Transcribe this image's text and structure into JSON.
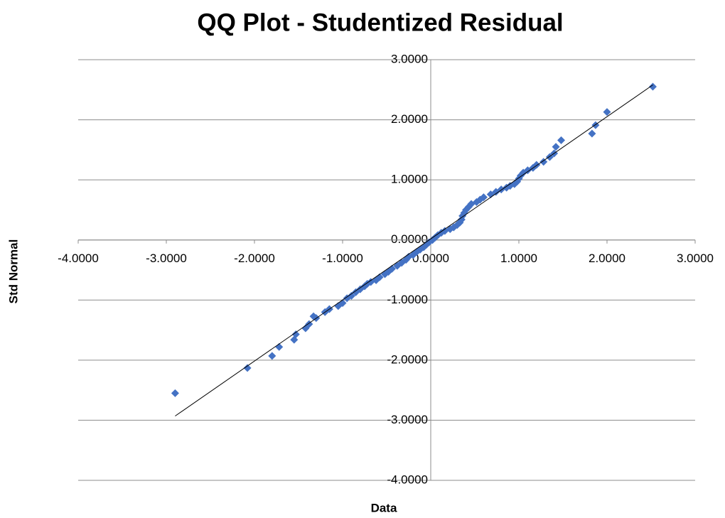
{
  "chart_data": {
    "type": "scatter",
    "title": "QQ Plot - Studentized Residual",
    "x_label": "Data",
    "y_label": "Std Normal",
    "xlim": [
      -4,
      3
    ],
    "ylim": [
      -4,
      3
    ],
    "xticks": [
      {
        "value": -4,
        "label": "-4.0000"
      },
      {
        "value": -3,
        "label": "-3.0000"
      },
      {
        "value": -2,
        "label": "-2.0000"
      },
      {
        "value": -1,
        "label": "-1.0000"
      },
      {
        "value": 0,
        "label": "0.0000"
      },
      {
        "value": 1,
        "label": "1.0000"
      },
      {
        "value": 2,
        "label": "2.0000"
      },
      {
        "value": 3,
        "label": "3.0000"
      }
    ],
    "yticks": [
      {
        "value": -4,
        "label": "-4.0000"
      },
      {
        "value": -3,
        "label": "-3.0000"
      },
      {
        "value": -2,
        "label": "-2.0000"
      },
      {
        "value": -1,
        "label": "-1.0000"
      },
      {
        "value": 0,
        "label": "0.0000"
      },
      {
        "value": 1,
        "label": "1.0000"
      },
      {
        "value": 2,
        "label": "2.0000"
      },
      {
        "value": 3,
        "label": "3.0000"
      }
    ],
    "grid": true,
    "color": "#4472c4",
    "x": [
      -2.9,
      -2.08,
      -1.8,
      -1.72,
      -1.55,
      -1.53,
      -1.42,
      -1.38,
      -1.33,
      -1.3,
      -1.2,
      -1.15,
      -1.05,
      -1.0,
      -0.95,
      -0.9,
      -0.85,
      -0.8,
      -0.75,
      -0.72,
      -0.68,
      -0.62,
      -0.58,
      -0.52,
      -0.48,
      -0.44,
      -0.38,
      -0.33,
      -0.28,
      -0.25,
      -0.2,
      -0.16,
      -0.12,
      -0.08,
      -0.05,
      -0.02,
      0.02,
      0.05,
      0.08,
      0.12,
      0.16,
      0.22,
      0.26,
      0.3,
      0.33,
      0.35,
      0.36,
      0.38,
      0.4,
      0.43,
      0.46,
      0.52,
      0.56,
      0.6,
      0.68,
      0.74,
      0.8,
      0.86,
      0.9,
      0.95,
      0.98,
      1.0,
      1.02,
      1.05,
      1.1,
      1.16,
      1.2,
      1.28,
      1.35,
      1.4,
      1.42,
      1.48,
      1.83,
      1.87,
      2.0,
      2.52
    ],
    "values": [
      -2.55,
      -2.13,
      -1.93,
      -1.78,
      -1.66,
      -1.57,
      -1.47,
      -1.4,
      -1.27,
      -1.3,
      -1.2,
      -1.15,
      -1.1,
      -1.05,
      -0.97,
      -0.93,
      -0.87,
      -0.82,
      -0.77,
      -0.73,
      -0.7,
      -0.67,
      -0.62,
      -0.57,
      -0.53,
      -0.48,
      -0.43,
      -0.38,
      -0.33,
      -0.28,
      -0.25,
      -0.2,
      -0.16,
      -0.12,
      -0.08,
      -0.04,
      0.0,
      0.04,
      0.08,
      0.12,
      0.15,
      0.18,
      0.21,
      0.25,
      0.29,
      0.34,
      0.4,
      0.45,
      0.5,
      0.55,
      0.6,
      0.63,
      0.67,
      0.71,
      0.76,
      0.8,
      0.84,
      0.87,
      0.9,
      0.93,
      0.97,
      1.02,
      1.07,
      1.12,
      1.16,
      1.2,
      1.25,
      1.3,
      1.38,
      1.44,
      1.55,
      1.66,
      1.77,
      1.91,
      2.13,
      2.55
    ],
    "trendline": {
      "x": [
        -2.9,
        2.52
      ],
      "y": [
        -2.93,
        2.58
      ],
      "color": "#000000"
    }
  }
}
